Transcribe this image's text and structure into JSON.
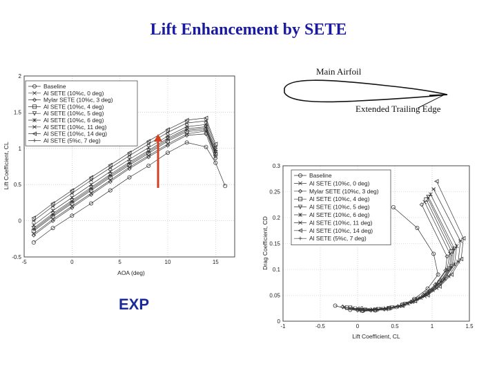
{
  "slide": {
    "title": "Lift Enhancement by SETE",
    "exp_label": "EXP",
    "accent_color": "#1a1aa0",
    "arrow_color": "#d2401e"
  },
  "sketch": {
    "main_airfoil_label": "Main Airfoil",
    "trailing_edge_label": "Extended Trailing Edge"
  },
  "chart_data": [
    {
      "type": "line",
      "title": "",
      "xlabel": "AOA (deg)",
      "ylabel": "Lift Coefficient, CL",
      "xlim": [
        -5,
        17
      ],
      "ylim": [
        -0.5,
        2
      ],
      "xticks": [
        -5,
        0,
        5,
        10,
        15
      ],
      "yticks": [
        -0.5,
        0,
        0.5,
        1,
        1.5,
        2
      ],
      "grid": true,
      "legend_position": "top-left",
      "series": [
        {
          "name": "Baseline",
          "marker": "circle",
          "x": [
            -4,
            -2,
            0,
            2,
            4,
            6,
            8,
            10,
            12,
            14,
            15,
            16
          ],
          "y": [
            -0.3,
            -0.1,
            0.07,
            0.24,
            0.42,
            0.6,
            0.76,
            0.94,
            1.08,
            1.02,
            0.8,
            0.48
          ]
        },
        {
          "name": "Al SETE (10%c, 0 deg)",
          "marker": "x",
          "x": [
            -4,
            -2,
            0,
            2,
            4,
            6,
            8,
            10,
            12,
            14,
            15
          ],
          "y": [
            -0.18,
            0.02,
            0.2,
            0.38,
            0.56,
            0.74,
            0.9,
            1.06,
            1.2,
            1.24,
            0.9
          ]
        },
        {
          "name": "Mylar SETE (10%c, 3 deg)",
          "marker": "diamond",
          "x": [
            -4,
            -2,
            0,
            2,
            4,
            6,
            8,
            10,
            12,
            14,
            15
          ],
          "y": [
            -0.2,
            0.0,
            0.18,
            0.36,
            0.54,
            0.72,
            0.88,
            1.04,
            1.18,
            1.2,
            0.86
          ]
        },
        {
          "name": "Al SETE (10%c, 4 deg)",
          "marker": "square",
          "x": [
            -4,
            -2,
            0,
            2,
            4,
            6,
            8,
            10,
            12,
            14,
            15
          ],
          "y": [
            -0.14,
            0.06,
            0.24,
            0.42,
            0.6,
            0.77,
            0.93,
            1.1,
            1.23,
            1.26,
            0.92
          ]
        },
        {
          "name": "Al SETE (10%c, 5 deg)",
          "marker": "triangle-down",
          "x": [
            -4,
            -2,
            0,
            2,
            4,
            6,
            8,
            10,
            12,
            14,
            15
          ],
          "y": [
            -0.1,
            0.1,
            0.28,
            0.46,
            0.64,
            0.81,
            0.97,
            1.14,
            1.27,
            1.3,
            0.95
          ]
        },
        {
          "name": "Al SETE (10%c, 6 deg)",
          "marker": "star",
          "x": [
            -4,
            -2,
            0,
            2,
            4,
            6,
            8,
            10,
            12,
            14,
            15
          ],
          "y": [
            -0.06,
            0.14,
            0.32,
            0.5,
            0.68,
            0.85,
            1.01,
            1.17,
            1.3,
            1.33,
            0.98
          ]
        },
        {
          "name": "Al SETE (10%c, 11 deg)",
          "marker": "asterisk",
          "x": [
            -4,
            -2,
            0,
            2,
            4,
            6,
            8,
            10,
            12,
            14,
            15
          ],
          "y": [
            0.0,
            0.2,
            0.38,
            0.56,
            0.73,
            0.9,
            1.06,
            1.22,
            1.35,
            1.38,
            1.02
          ]
        },
        {
          "name": "Al SETE (10%c, 14 deg)",
          "marker": "triangle-left",
          "x": [
            -4,
            -2,
            0,
            2,
            4,
            6,
            8,
            10,
            12,
            14,
            15
          ],
          "y": [
            0.04,
            0.24,
            0.42,
            0.6,
            0.77,
            0.94,
            1.1,
            1.26,
            1.39,
            1.42,
            1.06
          ]
        },
        {
          "name": "Al SETE (5%c, 7 deg)",
          "marker": "plus",
          "x": [
            -4,
            -2,
            0,
            2,
            4,
            6,
            8,
            10,
            12,
            14,
            15
          ],
          "y": [
            -0.12,
            0.08,
            0.26,
            0.44,
            0.62,
            0.79,
            0.95,
            1.12,
            1.25,
            1.28,
            0.94
          ]
        }
      ]
    },
    {
      "type": "line",
      "title": "",
      "xlabel": "Lift Coefficient, CL",
      "ylabel": "Drag Coefficient, CD",
      "xlim": [
        -1,
        1.5
      ],
      "ylim": [
        0,
        0.3
      ],
      "xticks": [
        -1,
        -0.5,
        0,
        0.5,
        1,
        1.5
      ],
      "yticks": [
        0,
        0.05,
        0.1,
        0.15,
        0.2,
        0.25,
        0.3
      ],
      "grid": true,
      "legend_position": "top-left",
      "series": [
        {
          "name": "Baseline",
          "marker": "circle",
          "x": [
            -0.3,
            -0.1,
            0.07,
            0.24,
            0.42,
            0.6,
            0.76,
            0.94,
            1.08,
            1.02,
            0.8,
            0.48
          ],
          "y": [
            0.03,
            0.022,
            0.02,
            0.021,
            0.025,
            0.032,
            0.043,
            0.063,
            0.09,
            0.13,
            0.18,
            0.22
          ]
        },
        {
          "name": "Al SETE (10%c, 0 deg)",
          "marker": "x",
          "x": [
            -0.18,
            0.02,
            0.2,
            0.38,
            0.56,
            0.74,
            0.9,
            1.06,
            1.2,
            1.24,
            0.9
          ],
          "y": [
            0.027,
            0.021,
            0.021,
            0.023,
            0.029,
            0.038,
            0.052,
            0.072,
            0.1,
            0.13,
            0.23
          ]
        },
        {
          "name": "Mylar SETE (10%c, 3 deg)",
          "marker": "diamond",
          "x": [
            -0.2,
            0.0,
            0.18,
            0.36,
            0.54,
            0.72,
            0.88,
            1.04,
            1.18,
            1.2,
            0.86
          ],
          "y": [
            0.028,
            0.021,
            0.021,
            0.023,
            0.028,
            0.037,
            0.05,
            0.07,
            0.098,
            0.125,
            0.225
          ]
        },
        {
          "name": "Al SETE (10%c, 4 deg)",
          "marker": "square",
          "x": [
            -0.14,
            0.06,
            0.24,
            0.42,
            0.6,
            0.77,
            0.93,
            1.1,
            1.23,
            1.26,
            0.92
          ],
          "y": [
            0.026,
            0.021,
            0.022,
            0.025,
            0.031,
            0.04,
            0.054,
            0.075,
            0.102,
            0.135,
            0.235
          ]
        },
        {
          "name": "Al SETE (10%c, 5 deg)",
          "marker": "triangle-down",
          "x": [
            -0.1,
            0.1,
            0.28,
            0.46,
            0.64,
            0.81,
            0.97,
            1.14,
            1.27,
            1.3,
            0.95
          ],
          "y": [
            0.026,
            0.022,
            0.023,
            0.026,
            0.033,
            0.043,
            0.057,
            0.078,
            0.106,
            0.14,
            0.24
          ]
        },
        {
          "name": "Al SETE (10%c, 6 deg)",
          "marker": "star",
          "x": [
            -0.06,
            0.14,
            0.32,
            0.5,
            0.68,
            0.85,
            1.01,
            1.17,
            1.3,
            1.33,
            0.98
          ],
          "y": [
            0.025,
            0.022,
            0.024,
            0.027,
            0.034,
            0.045,
            0.06,
            0.082,
            0.11,
            0.145,
            0.245
          ]
        },
        {
          "name": "Al SETE (10%c, 11 deg)",
          "marker": "asterisk",
          "x": [
            0.0,
            0.2,
            0.38,
            0.56,
            0.73,
            0.9,
            1.06,
            1.22,
            1.35,
            1.38,
            1.02
          ],
          "y": [
            0.025,
            0.023,
            0.025,
            0.029,
            0.037,
            0.048,
            0.064,
            0.087,
            0.115,
            0.155,
            0.255
          ]
        },
        {
          "name": "Al SETE (10%c, 14 deg)",
          "marker": "triangle-left",
          "x": [
            0.04,
            0.24,
            0.42,
            0.6,
            0.77,
            0.94,
            1.1,
            1.26,
            1.39,
            1.42,
            1.06
          ],
          "y": [
            0.025,
            0.023,
            0.026,
            0.03,
            0.039,
            0.05,
            0.067,
            0.09,
            0.12,
            0.16,
            0.27
          ]
        },
        {
          "name": "Al SETE (5%c, 7 deg)",
          "marker": "plus",
          "x": [
            -0.12,
            0.08,
            0.26,
            0.44,
            0.62,
            0.79,
            0.95,
            1.12,
            1.25,
            1.28,
            0.94
          ],
          "y": [
            0.026,
            0.022,
            0.023,
            0.026,
            0.032,
            0.042,
            0.056,
            0.077,
            0.104,
            0.138,
            0.238
          ]
        }
      ]
    }
  ]
}
